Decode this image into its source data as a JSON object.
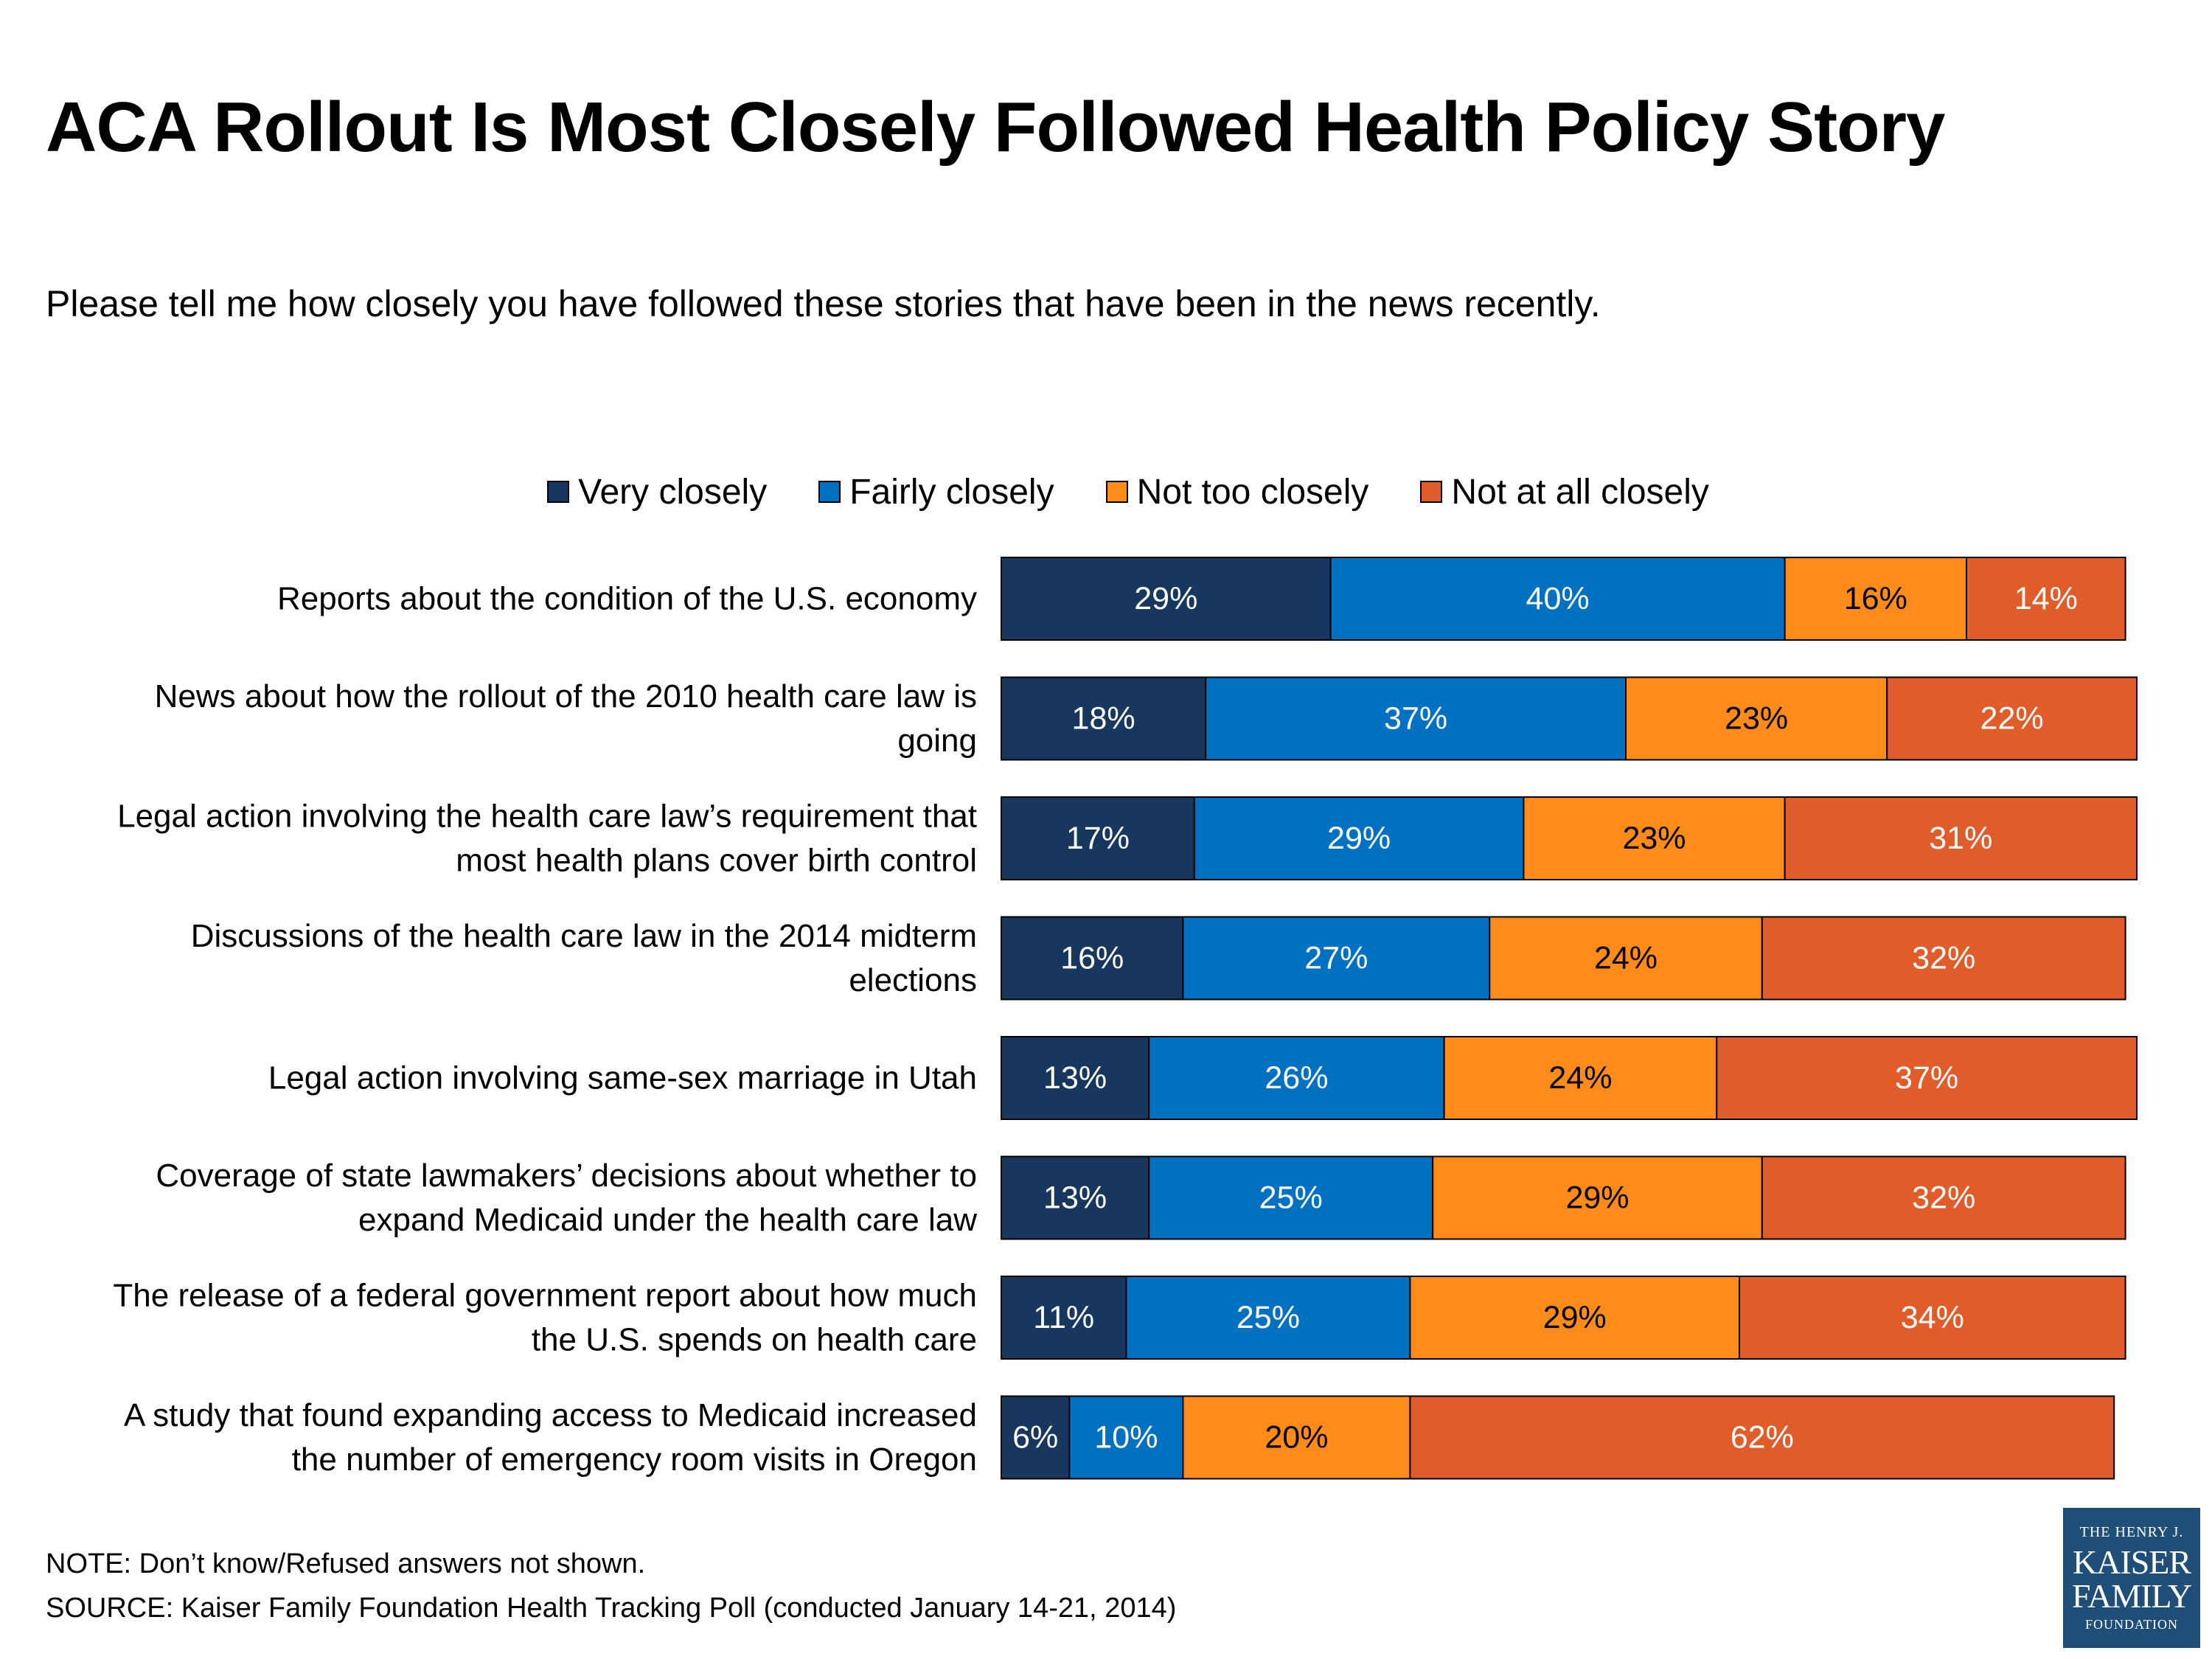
{
  "title": "ACA Rollout Is Most Closely Followed Health Policy Story",
  "subtitle": "Please tell me how closely you have followed these stories that have been in the news recently.",
  "legend": [
    {
      "label": "Very closely",
      "color": "#17375e"
    },
    {
      "label": "Fairly closely",
      "color": "#0070c0"
    },
    {
      "label": "Not too closely",
      "color": "#ff8c1a"
    },
    {
      "label": "Not at all closely",
      "color": "#e05c2a"
    }
  ],
  "chart_data": {
    "type": "bar",
    "orientation": "horizontal",
    "stacked": true,
    "unit": "%",
    "categories": [
      "Reports about the condition of the U.S. economy",
      "News about how the rollout of the 2010 health care law is going",
      "Legal action involving the health care law’s requirement that most health plans cover birth control",
      "Discussions of the health care law in the 2014 midterm elections",
      "Legal action involving same-sex marriage in Utah",
      "Coverage of state lawmakers’ decisions about whether to expand Medicaid under the health care law",
      "The release of a federal government report about how much the U.S. spends on health care",
      "A study that found expanding access to Medicaid increased the number of emergency room visits in Oregon"
    ],
    "category_lines": [
      [
        "Reports about the condition of the U.S. economy"
      ],
      [
        "News about how the rollout of the 2010 health care law is",
        "going"
      ],
      [
        "Legal action involving the health care law’s requirement that",
        "most health plans cover birth control"
      ],
      [
        "Discussions of the health care law in the 2014 midterm",
        "elections"
      ],
      [
        "Legal action involving same-sex marriage in Utah"
      ],
      [
        "Coverage of state lawmakers’ decisions about whether to",
        "expand Medicaid under the health care law"
      ],
      [
        "The release of a federal government report about how much",
        "the U.S. spends on health care"
      ],
      [
        "A study that found expanding access to Medicaid increased",
        "the number of emergency room visits in Oregon"
      ]
    ],
    "series": [
      {
        "name": "Very closely",
        "color": "#17375e",
        "text_color": "#ffffff",
        "values": [
          29,
          18,
          17,
          16,
          13,
          13,
          11,
          6
        ]
      },
      {
        "name": "Fairly closely",
        "color": "#0070c0",
        "text_color": "#ffffff",
        "values": [
          40,
          37,
          29,
          27,
          26,
          25,
          25,
          10
        ]
      },
      {
        "name": "Not too closely",
        "color": "#ff8c1a",
        "text_color": "#000000",
        "values": [
          16,
          23,
          23,
          24,
          24,
          29,
          29,
          20
        ]
      },
      {
        "name": "Not at all closely",
        "color": "#e05c2a",
        "text_color": "#ffffff",
        "values": [
          14,
          22,
          31,
          32,
          37,
          32,
          34,
          62
        ]
      }
    ],
    "xlim": [
      0,
      100
    ],
    "legend_position": "top",
    "grid": false
  },
  "footer": {
    "note": "NOTE: Don’t know/Refused answers not shown.",
    "source": "SOURCE: Kaiser Family Foundation Health Tracking Poll (conducted January 14-21, 2014)"
  },
  "logo": {
    "line1": "THE HENRY J.",
    "line2": "KAISER",
    "line3": "FAMILY",
    "line4": "FOUNDATION"
  }
}
